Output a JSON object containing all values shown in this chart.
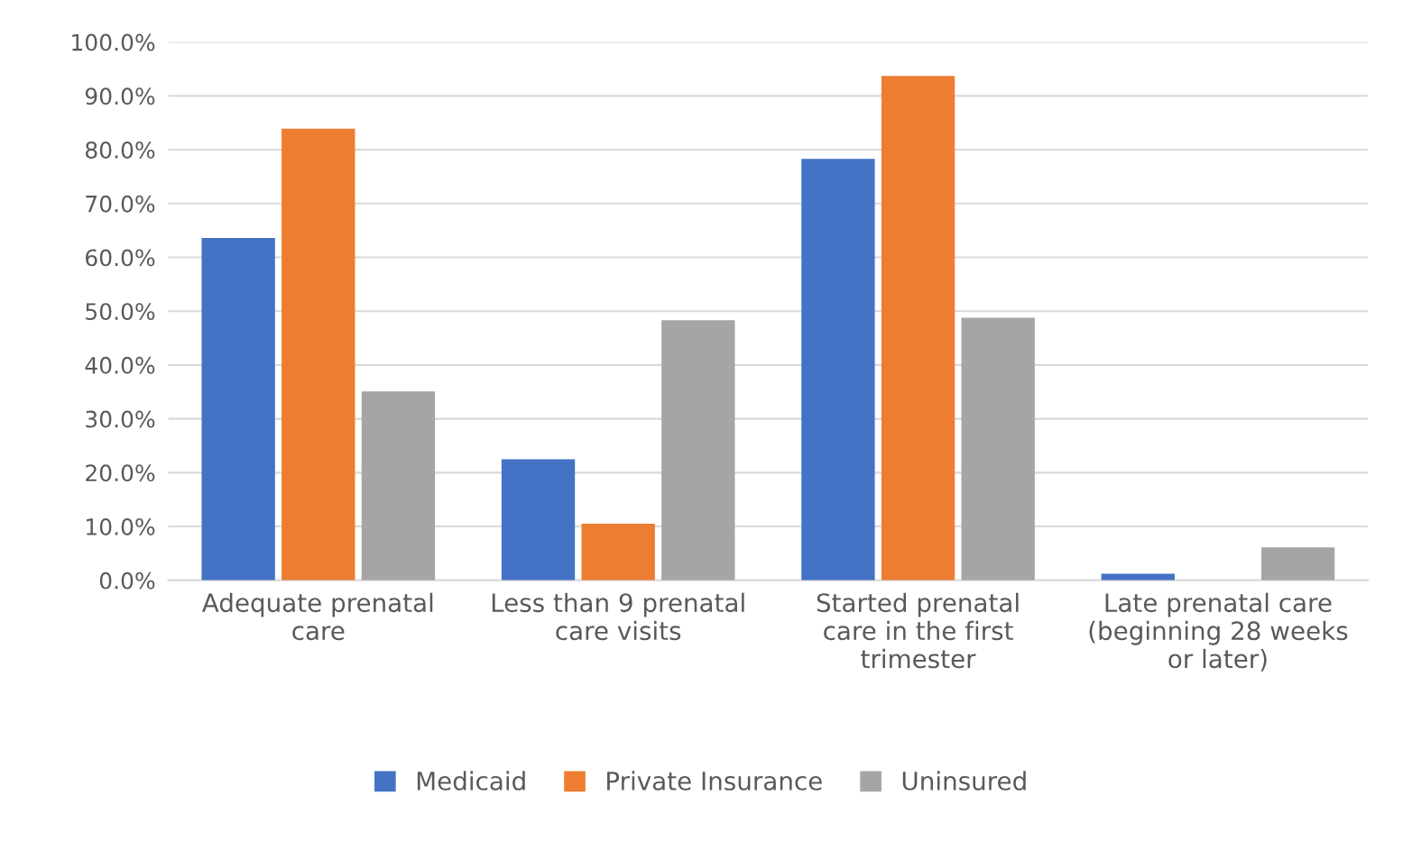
{
  "chart_data": {
    "type": "bar",
    "categories": [
      "Adequate prenatal\ncare",
      "Less than 9 prenatal\ncare visits",
      "Started prenatal\ncare in the first\ntrimester",
      "Late prenatal care\n(beginning 28 weeks\nor later)"
    ],
    "series": [
      {
        "name": "Medicaid",
        "color": "#4472c4",
        "values": [
          63.6,
          22.5,
          78.3,
          1.2
        ]
      },
      {
        "name": "Private Insurance",
        "color": "#ed7d31",
        "values": [
          83.9,
          10.5,
          93.7,
          0
        ]
      },
      {
        "name": "Uninsured",
        "color": "#a5a5a5",
        "values": [
          35.1,
          48.3,
          48.8,
          6.1
        ]
      }
    ],
    "ylim": [
      0,
      100
    ],
    "yticks": [
      {
        "value": 0,
        "label": "0.0%"
      },
      {
        "value": 10,
        "label": "10.0%"
      },
      {
        "value": 20,
        "label": "20.0%"
      },
      {
        "value": 30,
        "label": "30.0%"
      },
      {
        "value": 40,
        "label": "40.0%"
      },
      {
        "value": 50,
        "label": "50.0%"
      },
      {
        "value": 60,
        "label": "60.0%"
      },
      {
        "value": 70,
        "label": "70.0%"
      },
      {
        "value": 80,
        "label": "80.0%"
      },
      {
        "value": 90,
        "label": "90.0%"
      },
      {
        "value": 100,
        "label": "100.0%"
      }
    ],
    "grid": "y",
    "legend": "bottom"
  }
}
